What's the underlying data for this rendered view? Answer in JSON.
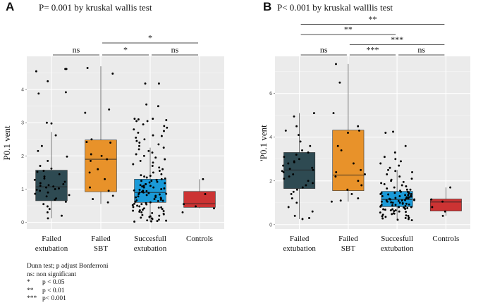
{
  "chart_data": [
    {
      "panel_label": "A",
      "type": "box",
      "title": "P= 0.001 by kruskal wallis test",
      "ylabel": "P0.1 vent",
      "xlabel": "",
      "ylim": [
        -0.2,
        5.0
      ],
      "yticks": [
        0,
        1,
        2,
        3,
        4
      ],
      "grid": true,
      "categories": [
        {
          "name": "Failed extubation",
          "lines": [
            "Failed",
            "extubation"
          ],
          "color": "#2e4a52",
          "box": {
            "q1": 0.65,
            "median": 1.07,
            "q3": 1.57,
            "whisker_low": 0.12,
            "whisker_high": 2.72
          },
          "points": [
            4.62,
            4.62,
            4.55,
            4.25,
            3.92,
            3.88,
            3.0,
            2.98,
            2.62,
            2.3,
            2.15,
            1.98,
            1.85,
            1.7,
            1.62,
            1.55,
            1.52,
            1.45,
            1.38,
            1.32,
            1.28,
            1.22,
            1.18,
            1.15,
            1.12,
            1.1,
            1.08,
            1.05,
            1.02,
            1.0,
            0.98,
            0.95,
            0.9,
            0.86,
            0.82,
            0.78,
            0.72,
            0.68,
            0.62,
            0.55,
            0.48,
            0.4,
            0.3,
            0.2,
            0.12
          ]
        },
        {
          "name": "Failed SBT",
          "lines": [
            "Failed",
            "SBT"
          ],
          "color": "#e8922a",
          "box": {
            "q1": 0.92,
            "median": 1.9,
            "q3": 2.48,
            "whisker_low": 0.55,
            "whisker_high": 4.7
          },
          "points": [
            4.65,
            4.48,
            3.4,
            3.3,
            2.5,
            2.42,
            2.4,
            2.05,
            2.0,
            1.9,
            1.85,
            1.6,
            1.5,
            1.3,
            1.05,
            0.95,
            0.8,
            0.7,
            0.6
          ]
        },
        {
          "name": "Succesfull extubation",
          "lines": [
            "Succesfull",
            "extubation"
          ],
          "color": "#1a9ad8",
          "box": {
            "q1": 0.6,
            "median": 0.9,
            "q3": 1.3,
            "whisker_low": 0.02,
            "whisker_high": 2.25
          },
          "points": [
            4.18,
            4.18,
            3.55,
            3.5,
            3.12,
            3.12,
            3.1,
            3.08,
            3.05,
            3.05,
            2.95,
            2.9,
            2.85,
            2.8,
            2.75,
            2.7,
            2.62,
            2.6,
            2.55,
            2.5,
            2.45,
            2.4,
            2.35,
            2.3,
            2.25,
            2.2,
            2.15,
            2.1,
            2.05,
            2.0,
            1.95,
            1.9,
            1.85,
            1.8,
            1.75,
            1.7,
            1.65,
            1.6,
            1.55,
            1.5,
            1.45,
            1.42,
            1.4,
            1.38,
            1.35,
            1.32,
            1.3,
            1.28,
            1.25,
            1.22,
            1.2,
            1.18,
            1.15,
            1.12,
            1.1,
            1.08,
            1.05,
            1.02,
            1.0,
            0.98,
            0.96,
            0.94,
            0.92,
            0.9,
            0.88,
            0.86,
            0.84,
            0.82,
            0.8,
            0.78,
            0.76,
            0.74,
            0.72,
            0.7,
            0.68,
            0.66,
            0.64,
            0.62,
            0.6,
            0.58,
            0.56,
            0.54,
            0.52,
            0.5,
            0.48,
            0.46,
            0.44,
            0.42,
            0.4,
            0.38,
            0.36,
            0.34,
            0.32,
            0.3,
            0.28,
            0.26,
            0.24,
            0.22,
            0.2,
            0.18,
            0.16,
            0.14,
            0.12,
            0.1,
            0.08,
            0.06,
            0.05,
            0.04,
            0.03,
            0.02,
            1.1,
            0.9,
            0.95,
            1.05,
            0.85,
            0.75,
            1.15,
            1.25,
            0.65,
            0.55,
            0.45,
            0.35
          ]
        },
        {
          "name": "Controls",
          "lines": [
            "Controls"
          ],
          "color": "#cc3333",
          "box": {
            "q1": 0.45,
            "median": 0.56,
            "q3": 0.93,
            "whisker_low": 0.42,
            "whisker_high": 1.3
          },
          "points": [
            1.3,
            0.85,
            0.55,
            0.48,
            0.42,
            0.3
          ]
        }
      ],
      "significance": [
        {
          "from": 0,
          "to": 1,
          "label": "ns",
          "level": 0
        },
        {
          "from": 1,
          "to": 2,
          "label": "*",
          "level": 0
        },
        {
          "from": 2,
          "to": 3,
          "label": "ns",
          "level": 0
        },
        {
          "from": 1,
          "to": 3,
          "label": "*",
          "level": 1
        }
      ]
    },
    {
      "panel_label": "B",
      "type": "box",
      "title": "P< 0.001 by kruskal walllis test",
      "ylabel": "'P0.1 vent",
      "xlabel": "",
      "ylim": [
        -0.2,
        7.7
      ],
      "yticks": [
        0,
        2,
        4,
        6
      ],
      "grid": true,
      "categories": [
        {
          "name": "Failed extubation",
          "lines": [
            "Failed",
            "extubation"
          ],
          "color": "#2e4a52",
          "box": {
            "q1": 1.65,
            "median": 2.5,
            "q3": 3.3,
            "whisker_low": 0.25,
            "whisker_high": 5.1
          },
          "points": [
            5.1,
            4.95,
            4.5,
            4.3,
            4.1,
            3.8,
            3.6,
            3.4,
            3.3,
            3.2,
            3.1,
            3.0,
            2.9,
            2.85,
            2.8,
            2.7,
            2.6,
            2.55,
            2.5,
            2.45,
            2.4,
            2.3,
            2.2,
            2.1,
            2.0,
            1.9,
            1.8,
            1.7,
            1.6,
            1.5,
            1.4,
            1.2,
            1.0,
            0.8,
            0.6,
            0.4,
            0.3,
            0.25
          ]
        },
        {
          "name": "Failed SBT",
          "lines": [
            "Failed",
            "SBT"
          ],
          "color": "#e8922a",
          "box": {
            "q1": 1.55,
            "median": 2.27,
            "q3": 4.32,
            "whisker_low": 1.05,
            "whisker_high": 7.35
          },
          "points": [
            7.35,
            6.5,
            5.1,
            4.5,
            4.3,
            4.2,
            3.6,
            3.4,
            2.8,
            2.5,
            2.4,
            2.3,
            2.2,
            2.0,
            1.8,
            1.6,
            1.4,
            1.2,
            1.1,
            1.05
          ]
        },
        {
          "name": "Succesfull extubation",
          "lines": [
            "Succesfull",
            "extubation"
          ],
          "color": "#1a9ad8",
          "box": {
            "q1": 0.82,
            "median": 1.15,
            "q3": 1.52,
            "whisker_low": 0.2,
            "whisker_high": 2.5
          },
          "points": [
            4.25,
            4.2,
            3.6,
            3.3,
            3.1,
            3.0,
            2.9,
            2.8,
            2.7,
            2.6,
            2.5,
            2.45,
            2.4,
            2.3,
            2.2,
            2.1,
            2.05,
            2.0,
            1.95,
            1.9,
            1.85,
            1.8,
            1.75,
            1.7,
            1.65,
            1.6,
            1.55,
            1.5,
            1.48,
            1.45,
            1.42,
            1.4,
            1.38,
            1.35,
            1.32,
            1.3,
            1.28,
            1.25,
            1.22,
            1.2,
            1.18,
            1.15,
            1.12,
            1.1,
            1.08,
            1.05,
            1.02,
            1.0,
            0.98,
            0.95,
            0.92,
            0.9,
            0.88,
            0.85,
            0.82,
            0.8,
            0.78,
            0.75,
            0.72,
            0.7,
            0.68,
            0.65,
            0.62,
            0.6,
            0.58,
            0.55,
            0.52,
            0.5,
            0.48,
            0.45,
            0.42,
            0.4,
            0.38,
            0.35,
            0.32,
            0.3,
            0.28,
            0.25,
            0.22,
            0.2,
            1.1,
            1.2,
            1.3,
            1.0,
            0.9,
            1.15,
            1.25,
            0.95,
            1.05,
            1.35,
            0.85,
            0.75,
            1.4,
            1.5,
            0.7,
            0.65,
            1.6,
            1.45,
            0.8,
            1.12
          ]
        },
        {
          "name": "Controls",
          "lines": [
            "Controls"
          ],
          "color": "#cc3333",
          "box": {
            "q1": 0.62,
            "median": 1.03,
            "q3": 1.17,
            "whisker_low": 0.4,
            "whisker_high": 1.7
          },
          "points": [
            1.7,
            1.15,
            1.05,
            0.8,
            0.6,
            0.4
          ]
        }
      ],
      "significance": [
        {
          "from": 0,
          "to": 1,
          "label": "ns",
          "level": 0
        },
        {
          "from": 1,
          "to": 2,
          "label": "***",
          "level": 0
        },
        {
          "from": 2,
          "to": 3,
          "label": "ns",
          "level": 0
        },
        {
          "from": 1,
          "to": 3,
          "label": "***",
          "level": 1
        },
        {
          "from": 0,
          "to": 2,
          "label": "**",
          "level": 2
        },
        {
          "from": 0,
          "to": 3,
          "label": "**",
          "level": 3
        }
      ]
    }
  ],
  "legend_note": {
    "title": "Dunn test; p adjust Bonferroni",
    "ns_line": "ns: non significant",
    "items": [
      {
        "symbol": "*",
        "text": "p < 0.05"
      },
      {
        "symbol": "**",
        "text": "p < 0.01"
      },
      {
        "symbol": "***",
        "text": "p< 0.001"
      }
    ]
  }
}
